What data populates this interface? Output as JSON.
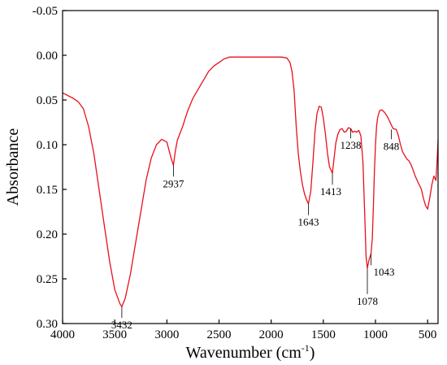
{
  "chart_data": {
    "type": "line",
    "xlabel": "Wavenumber (cm",
    "xlabel_sup": "-1",
    "xlabel_close": ")",
    "ylabel": "Absorbance",
    "xlim": [
      4000,
      400
    ],
    "ylim": [
      -0.05,
      0.3
    ],
    "y_inverted": true,
    "grid": false,
    "x_ticks": [
      4000,
      3500,
      3000,
      2500,
      2000,
      1500,
      1000,
      500
    ],
    "x_tick_labels": [
      "4000",
      "3500",
      "3000",
      "2500",
      "2000",
      "1500",
      "1000",
      "500"
    ],
    "y_ticks": [
      -0.05,
      0.0,
      0.05,
      0.1,
      0.15,
      0.2,
      0.25,
      0.3
    ],
    "y_tick_labels": [
      "-0.05",
      "0.00",
      "0.05",
      "0.10",
      "0.15",
      "0.20",
      "0.25",
      "0.30"
    ],
    "line_color": "#e8101a",
    "series": [
      {
        "x": [
          4000,
          3950,
          3900,
          3850,
          3800,
          3750,
          3700,
          3650,
          3600,
          3550,
          3500,
          3450,
          3432,
          3400,
          3350,
          3300,
          3250,
          3200,
          3150,
          3100,
          3050,
          3000,
          2980,
          2960,
          2937,
          2920,
          2900,
          2850,
          2800,
          2750,
          2700,
          2650,
          2600,
          2550,
          2500,
          2450,
          2400,
          2300,
          2200,
          2100,
          2000,
          1900,
          1850,
          1820,
          1800,
          1780,
          1760,
          1740,
          1720,
          1700,
          1680,
          1660,
          1643,
          1620,
          1600,
          1580,
          1560,
          1540,
          1520,
          1500,
          1480,
          1460,
          1440,
          1420,
          1413,
          1400,
          1380,
          1360,
          1340,
          1320,
          1300,
          1280,
          1260,
          1238,
          1220,
          1200,
          1180,
          1160,
          1140,
          1120,
          1100,
          1090,
          1078,
          1060,
          1043,
          1030,
          1020,
          1010,
          1000,
          990,
          980,
          960,
          940,
          920,
          900,
          880,
          860,
          848,
          830,
          800,
          780,
          760,
          740,
          720,
          700,
          680,
          660,
          640,
          620,
          600,
          580,
          560,
          540,
          520,
          500,
          480,
          460,
          440,
          420,
          410,
          400
        ],
        "y": [
          0.042,
          0.045,
          0.048,
          0.052,
          0.06,
          0.08,
          0.11,
          0.15,
          0.19,
          0.23,
          0.262,
          0.278,
          0.281,
          0.272,
          0.245,
          0.21,
          0.175,
          0.14,
          0.115,
          0.1,
          0.094,
          0.097,
          0.106,
          0.115,
          0.123,
          0.108,
          0.095,
          0.08,
          0.062,
          0.048,
          0.038,
          0.028,
          0.018,
          0.012,
          0.008,
          0.004,
          0.002,
          0.002,
          0.002,
          0.002,
          0.002,
          0.002,
          0.003,
          0.008,
          0.018,
          0.04,
          0.08,
          0.11,
          0.13,
          0.145,
          0.155,
          0.162,
          0.166,
          0.152,
          0.12,
          0.085,
          0.065,
          0.057,
          0.058,
          0.07,
          0.088,
          0.11,
          0.125,
          0.13,
          0.132,
          0.118,
          0.098,
          0.088,
          0.083,
          0.082,
          0.086,
          0.085,
          0.081,
          0.082,
          0.086,
          0.085,
          0.086,
          0.084,
          0.09,
          0.12,
          0.19,
          0.225,
          0.238,
          0.228,
          0.222,
          0.205,
          0.17,
          0.13,
          0.1,
          0.08,
          0.07,
          0.062,
          0.061,
          0.063,
          0.066,
          0.07,
          0.075,
          0.078,
          0.082,
          0.083,
          0.09,
          0.1,
          0.108,
          0.112,
          0.116,
          0.118,
          0.122,
          0.128,
          0.135,
          0.14,
          0.145,
          0.15,
          0.16,
          0.168,
          0.172,
          0.16,
          0.145,
          0.135,
          0.14,
          0.12,
          0.095
        ]
      }
    ],
    "annotations": [
      {
        "label": "3432",
        "x": 3432,
        "y": 0.281
      },
      {
        "label": "2937",
        "x": 2937,
        "y": 0.123
      },
      {
        "label": "1643",
        "x": 1643,
        "y": 0.166
      },
      {
        "label": "1413",
        "x": 1413,
        "y": 0.132
      },
      {
        "label": "1238",
        "x": 1238,
        "y": 0.082
      },
      {
        "label": "1078",
        "x": 1078,
        "y": 0.238
      },
      {
        "label": "1043",
        "x": 1043,
        "y": 0.222
      },
      {
        "label": "848",
        "x": 848,
        "y": 0.083
      }
    ]
  }
}
